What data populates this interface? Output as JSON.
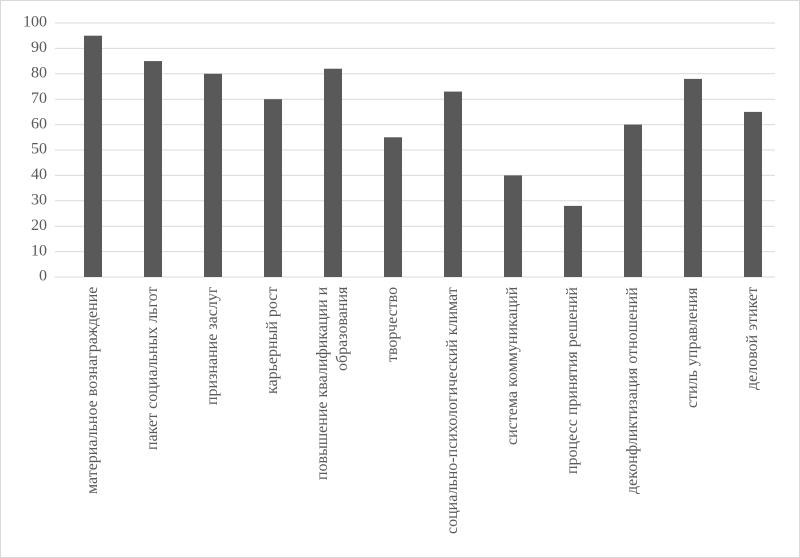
{
  "chart_data": {
    "type": "bar",
    "categories": [
      "материальное вознаграждение",
      "пакет социальных льгот",
      "признание заслуг",
      "карьерный рост",
      "повышение квалификации и образования",
      "творчество",
      "социально-психологический климат",
      "система коммуникаций",
      "процесс принятия решений",
      "деконфликтизация отношений",
      "стиль управления",
      "деловой этикет"
    ],
    "values": [
      95,
      85,
      80,
      70,
      82,
      55,
      73,
      40,
      28,
      60,
      78,
      65
    ],
    "color": "#595959",
    "ylim": [
      0,
      100
    ],
    "yticks": [
      0,
      10,
      20,
      30,
      40,
      50,
      60,
      70,
      80,
      90,
      100
    ],
    "grid": true
  }
}
